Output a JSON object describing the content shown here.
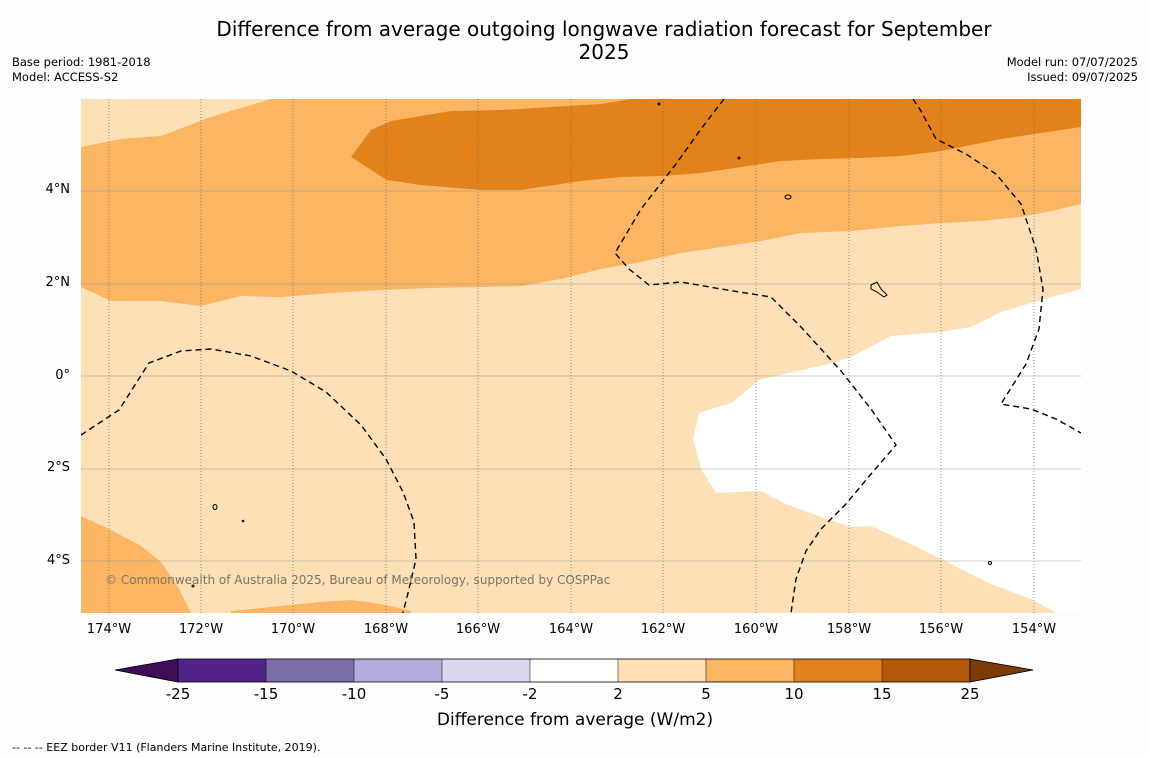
{
  "title": "Difference from average outgoing longwave radiation forecast for September 2025",
  "base_period": "Base period: 1981-2018",
  "model": "Model: ACCESS-S2",
  "model_run": "Model run: 07/07/2025",
  "issued": "Issued: 09/07/2025",
  "copyright": "© Commonwealth of Australia 2025, Bureau of Meteorology, supported by COSPPac",
  "lat_labels": [
    "4°N",
    "2°N",
    "0°",
    "2°S",
    "4°S"
  ],
  "lon_labels": [
    "174°W",
    "172°W",
    "170°W",
    "168°W",
    "166°W",
    "164°W",
    "162°W",
    "160°W",
    "158°W",
    "156°W",
    "154°W"
  ],
  "colorbar": {
    "labels": [
      "-25",
      "-15",
      "-10",
      "-5",
      "-2",
      "2",
      "5",
      "10",
      "15",
      "25"
    ],
    "colors": [
      "#3f0c57",
      "#52248a",
      "#7d6fab",
      "#b4addb",
      "#dad8ee",
      "#ffffff",
      "#fde0b5",
      "#fbb563",
      "#e2821a",
      "#b35808",
      "#7a3b06"
    ],
    "title": "Difference from average (W/m2)"
  },
  "footer": "--  --  -- EEZ border V11 (Flanders Marine Institute, 2019)."
}
